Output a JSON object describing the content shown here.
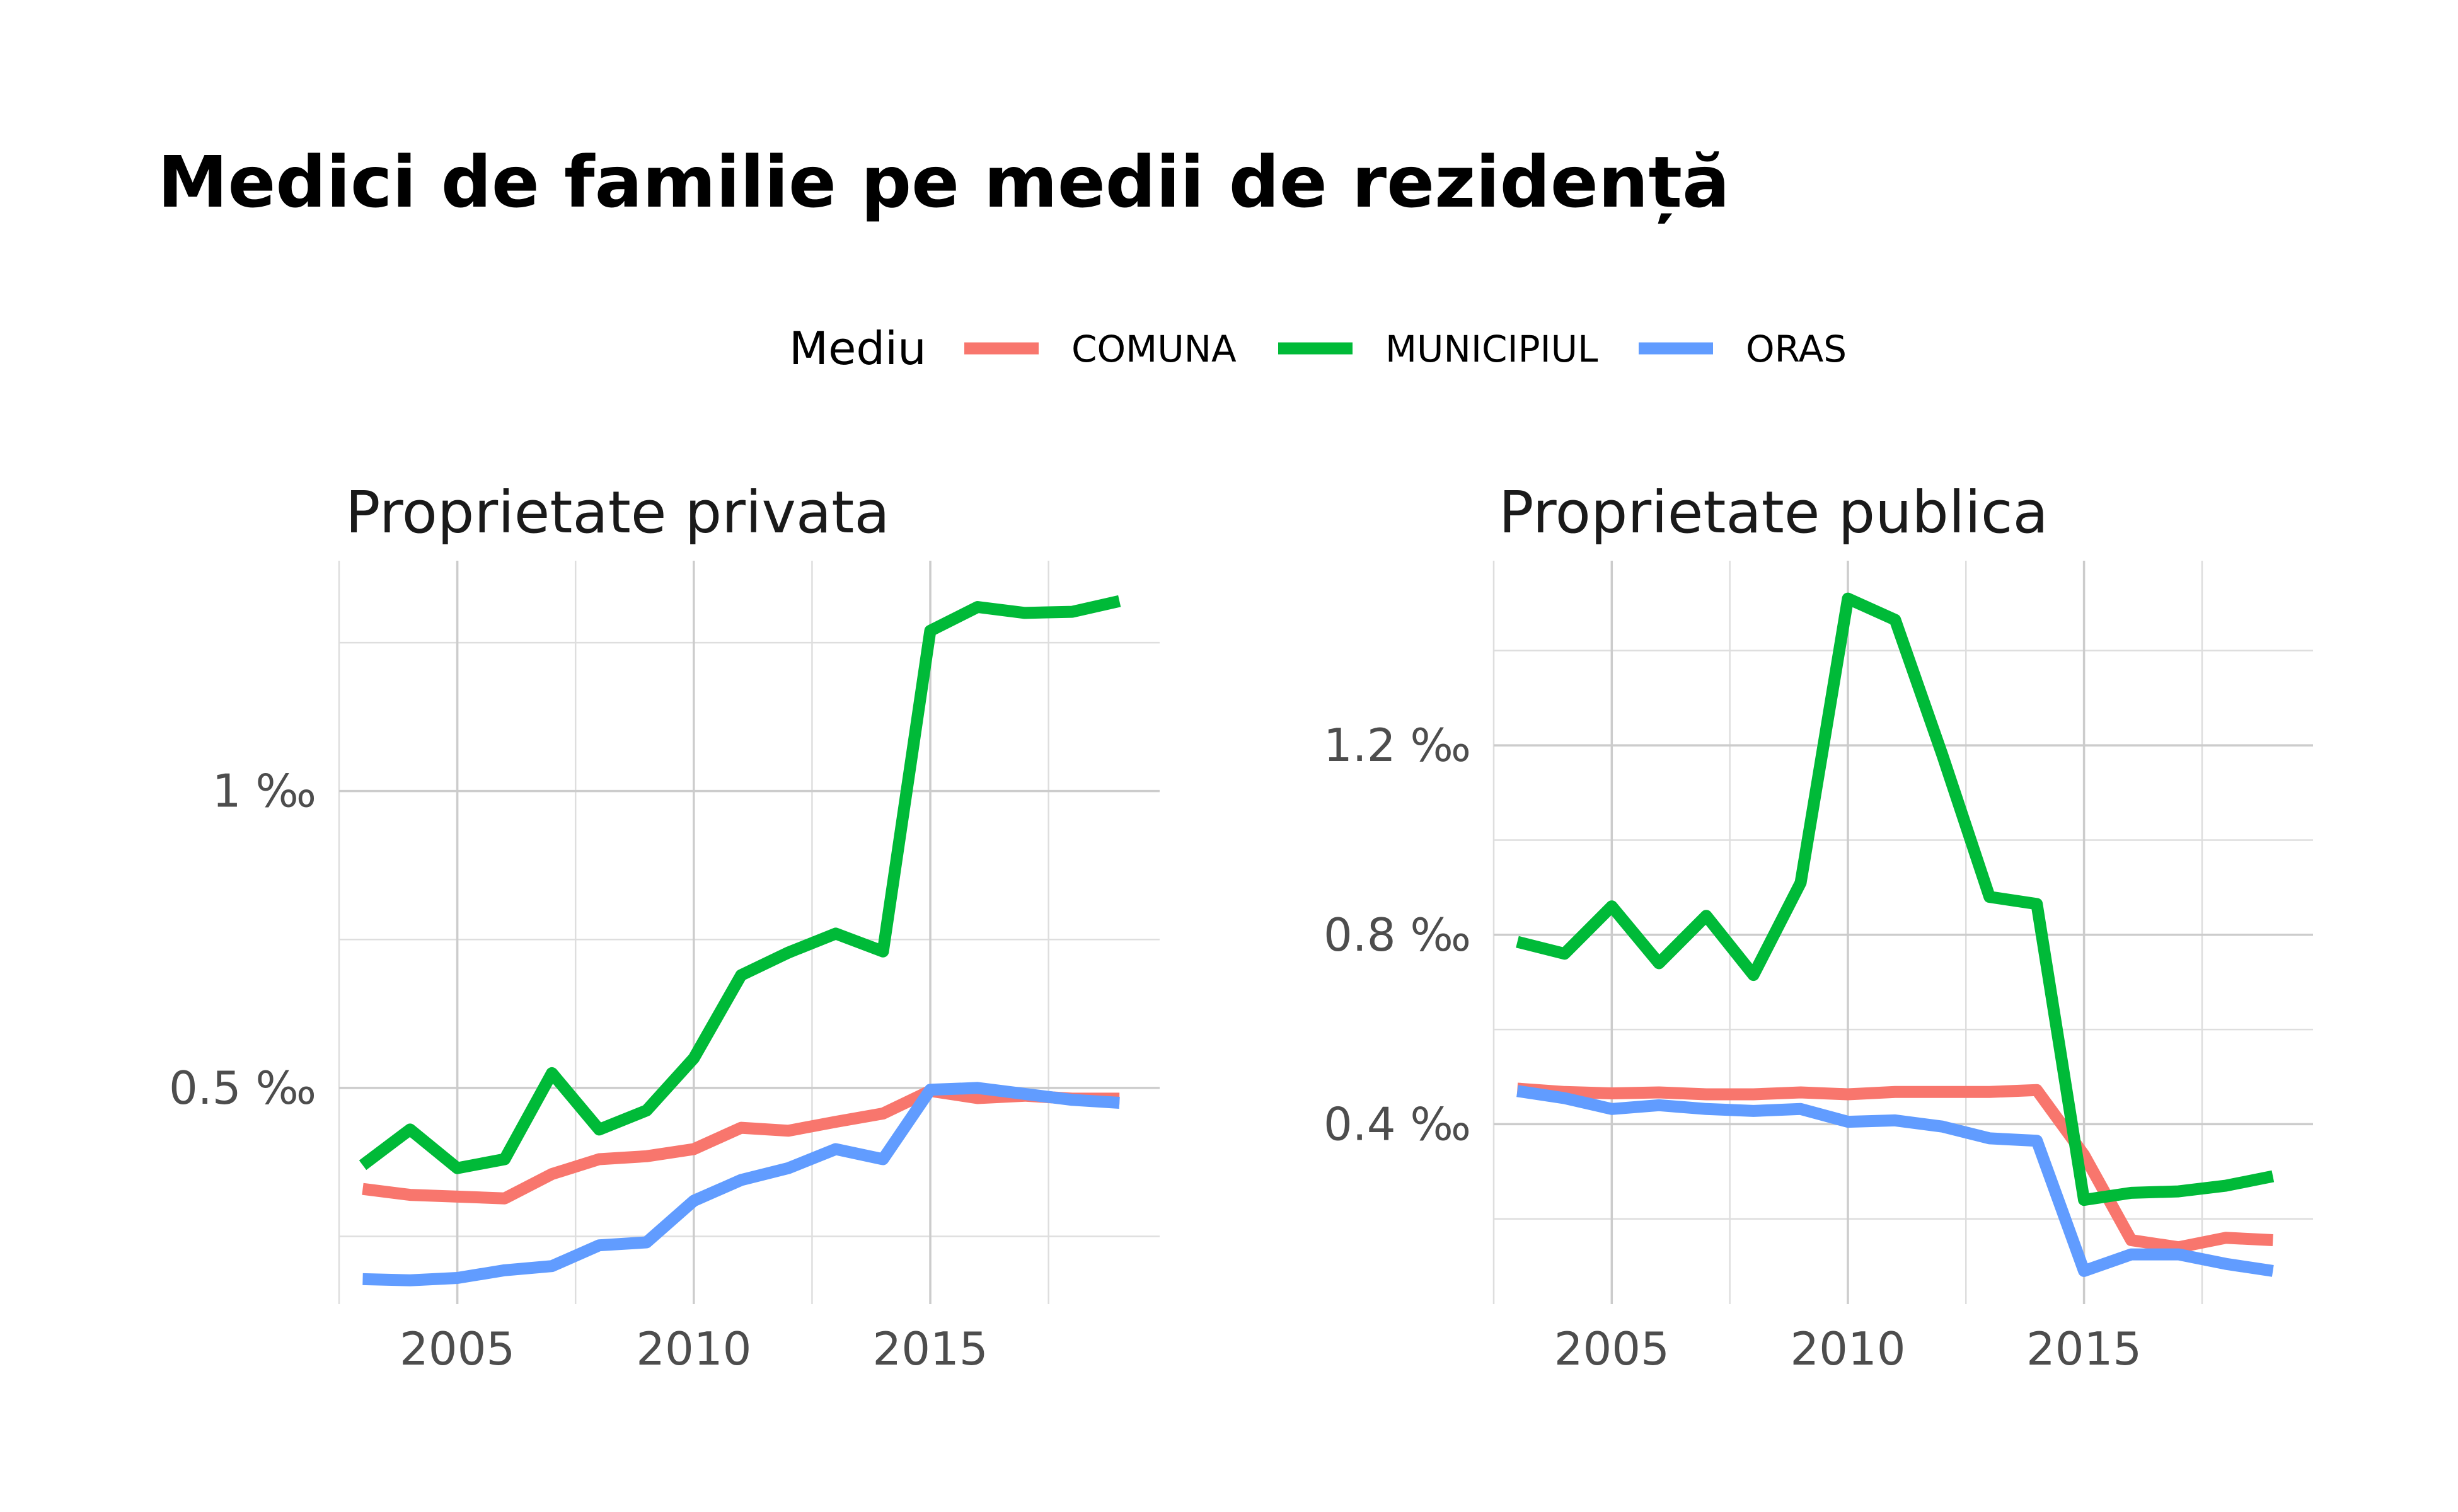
{
  "title": "Medici de familie pe medii de rezidență",
  "legend": {
    "title": "Mediu",
    "position": "top",
    "entries": [
      {
        "label": "COMUNA",
        "color": "#F8766D"
      },
      {
        "label": "MUNICIPIUL",
        "color": "#00BA38"
      },
      {
        "label": "ORAS",
        "color": "#619CFF"
      }
    ]
  },
  "chart_data": [
    {
      "type": "line",
      "title": "Proprietate privata",
      "grid": true,
      "x": [
        2003,
        2004,
        2005,
        2006,
        2007,
        2008,
        2009,
        2010,
        2011,
        2012,
        2013,
        2014,
        2015,
        2016,
        2017,
        2018,
        2019
      ],
      "xlim": [
        2002.5,
        2019.85
      ],
      "x_ticks": [
        2005,
        2010,
        2015
      ],
      "x_tick_labels": [
        "2005",
        "2010",
        "2015"
      ],
      "ylim": [
        0.136,
        1.388
      ],
      "y_ticks": [
        0.5,
        1.0
      ],
      "y_tick_labels": [
        "0.5 ‰",
        "1 ‰"
      ],
      "y_minor_ticks": [
        0.25,
        0.75,
        1.25
      ],
      "series": [
        {
          "name": "COMUNA",
          "color": "#F8766D",
          "values": [
            0.33,
            0.32,
            0.317,
            0.314,
            0.355,
            0.38,
            0.385,
            0.397,
            0.433,
            0.428,
            0.443,
            0.457,
            0.495,
            0.483,
            0.487,
            0.482,
            0.482
          ]
        },
        {
          "name": "MUNICIPIUL",
          "color": "#00BA38",
          "values": [
            0.37,
            0.43,
            0.365,
            0.38,
            0.525,
            0.43,
            0.462,
            0.55,
            0.69,
            0.728,
            0.76,
            0.73,
            1.27,
            1.31,
            1.3,
            1.302,
            1.32
          ]
        },
        {
          "name": "ORAS",
          "color": "#619CFF",
          "values": [
            0.178,
            0.176,
            0.18,
            0.193,
            0.2,
            0.235,
            0.24,
            0.31,
            0.345,
            0.365,
            0.397,
            0.38,
            0.497,
            0.5,
            0.49,
            0.48,
            0.475
          ]
        }
      ]
    },
    {
      "type": "line",
      "title": "Proprietate publica",
      "grid": true,
      "x": [
        2003,
        2004,
        2005,
        2006,
        2007,
        2008,
        2009,
        2010,
        2011,
        2012,
        2013,
        2014,
        2015,
        2016,
        2017,
        2018,
        2019
      ],
      "xlim": [
        2002.5,
        2019.85
      ],
      "x_ticks": [
        2005,
        2010,
        2015
      ],
      "x_tick_labels": [
        "2005",
        "2010",
        "2015"
      ],
      "ylim": [
        0.02,
        1.59
      ],
      "y_ticks": [
        0.4,
        0.8,
        1.2
      ],
      "y_tick_labels": [
        "0.4 ‰",
        "0.8 ‰",
        "1.2 ‰"
      ],
      "y_minor_ticks": [
        0.2,
        0.6,
        1.0,
        1.4
      ],
      "series": [
        {
          "name": "COMUNA",
          "color": "#F8766D",
          "values": [
            0.475,
            0.468,
            0.465,
            0.467,
            0.463,
            0.463,
            0.467,
            0.463,
            0.468,
            0.468,
            0.468,
            0.472,
            0.335,
            0.155,
            0.14,
            0.16,
            0.155
          ]
        },
        {
          "name": "MUNICIPIUL",
          "color": "#00BA38",
          "values": [
            0.785,
            0.76,
            0.86,
            0.74,
            0.84,
            0.715,
            0.91,
            1.51,
            1.465,
            1.18,
            0.88,
            0.865,
            0.24,
            0.255,
            0.258,
            0.27,
            0.29
          ]
        },
        {
          "name": "ORAS",
          "color": "#619CFF",
          "values": [
            0.47,
            0.455,
            0.432,
            0.44,
            0.432,
            0.428,
            0.432,
            0.405,
            0.408,
            0.395,
            0.37,
            0.365,
            0.09,
            0.125,
            0.125,
            0.105,
            0.09
          ]
        }
      ]
    }
  ]
}
